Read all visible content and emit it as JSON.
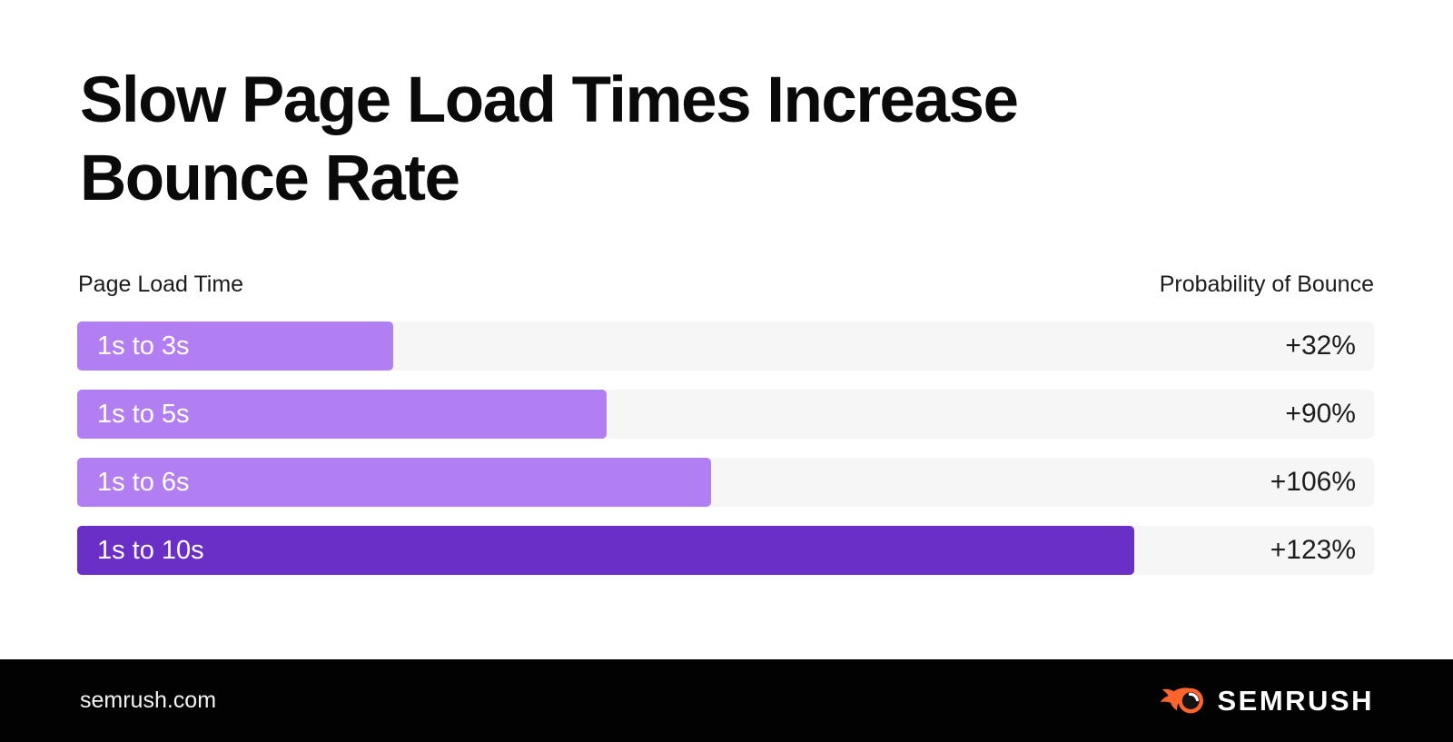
{
  "title_lines": [
    "Slow Page Load Times Increase",
    "Bounce Rate"
  ],
  "columns": {
    "left": "Page Load Time",
    "right": "Probability of Bounce"
  },
  "chart_data": {
    "type": "bar",
    "orientation": "horizontal",
    "title": "Slow Page Load Times Increase Bounce Rate",
    "categories": [
      "1s to 3s",
      "1s to 5s",
      "1s to 6s",
      "1s to 10s"
    ],
    "series": [
      {
        "name": "Probability of Bounce",
        "values": [
          32,
          90,
          106,
          123
        ]
      }
    ],
    "value_labels": [
      "+32%",
      "+90%",
      "+106%",
      "+123%"
    ],
    "load_time_seconds": [
      3,
      5,
      6,
      10
    ],
    "bar_width_pct": [
      24.4,
      40.8,
      48.9,
      81.5
    ],
    "bar_colors": [
      "#b27ff2",
      "#b27ff2",
      "#b27ff2",
      "#6a2fc6"
    ],
    "xlabel": "Page Load Time",
    "value_axis_label": "Probability of Bounce",
    "legend": false,
    "grid": false
  },
  "colors": {
    "accent_light": "#b27ff2",
    "accent_dark": "#6a2fc6",
    "track": "#f6f6f7",
    "footer_bg": "#020202",
    "brand_orange": "#ff642d",
    "title_color": "#0a0a0a"
  },
  "footer": {
    "site": "semrush.com",
    "brand": "SEMRUSH"
  }
}
